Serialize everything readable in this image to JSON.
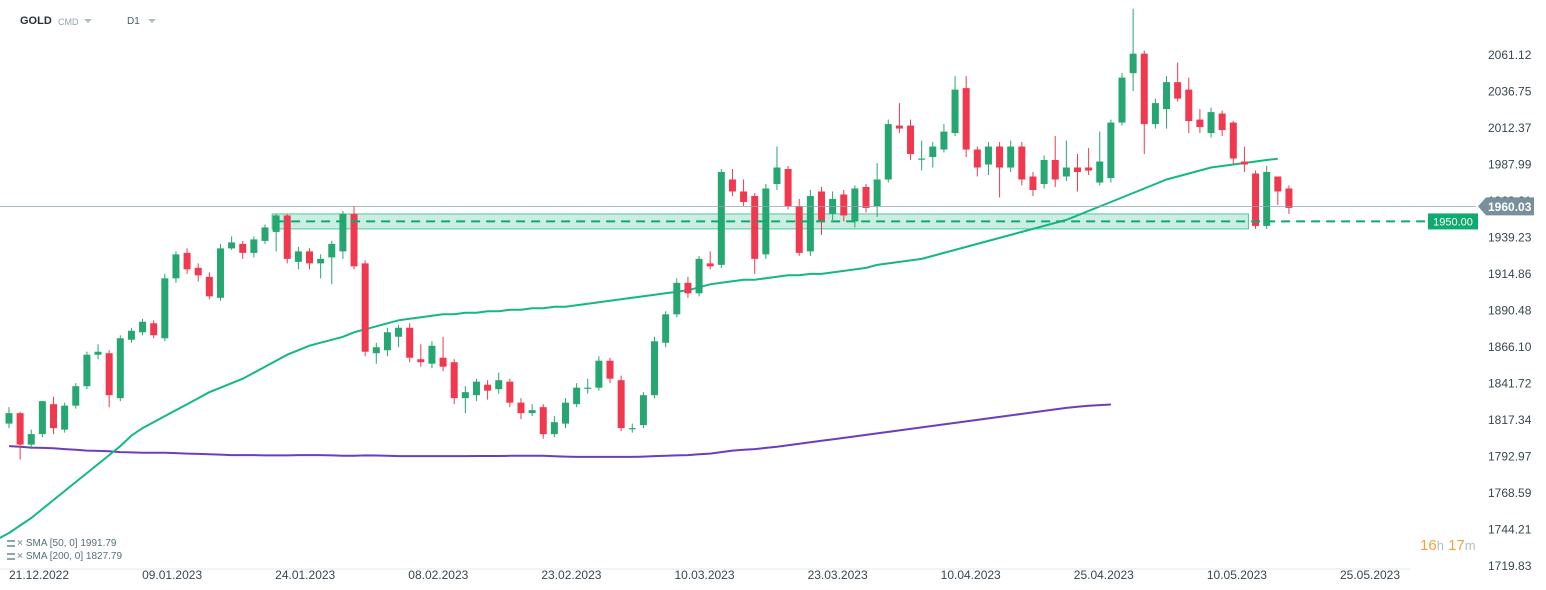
{
  "header": {
    "symbol": "GOLD",
    "instrument_type": "CMD",
    "timeframe": "D1"
  },
  "indicators": [
    {
      "label": "SMA  [50,  0]  1991.79",
      "color": "#13b883"
    },
    {
      "label": "SMA  [200,  0]  1827.79",
      "color": "#6c3fb8"
    }
  ],
  "timer": {
    "hours": "16",
    "h_unit": "h",
    "minutes": "17",
    "m_unit": "m"
  },
  "colors": {
    "up": "#26a671",
    "down": "#f0394f",
    "sma50": "#13b883",
    "sma200": "#6c3fb8",
    "zone": "#4fc79a",
    "price_tag": "#78909c",
    "level_tag": "#0faa6f"
  },
  "chart_data": {
    "type": "candlestick",
    "y_ticks": [
      2061.12,
      2036.75,
      2012.37,
      1987.99,
      1963.61,
      1939.23,
      1914.86,
      1890.48,
      1866.1,
      1841.72,
      1817.34,
      1792.97,
      1768.59,
      1744.21,
      1719.83
    ],
    "y_tick_labels": [
      "2061.12",
      "2036.75",
      "2012.37",
      "1987.99",
      "1963.61",
      "1939.23",
      "1914.86",
      "1890.48",
      "1866.10",
      "1841.72",
      "1817.34",
      "1792.97",
      "1768.59",
      "1744.21",
      "1719.83"
    ],
    "x_tick_labels": [
      "21.12.2022",
      "09.01.2023",
      "24.01.2023",
      "08.02.2023",
      "23.02.2023",
      "10.03.2023",
      "23.03.2023",
      "10.04.2023",
      "25.04.2023",
      "10.05.2023",
      "25.05.2023"
    ],
    "last_price": {
      "value": 1960.03,
      "label": "1960.03"
    },
    "level": {
      "value": 1950.0,
      "label": "1950.00"
    },
    "zone": {
      "low": 1945,
      "high": 1955,
      "from_index": 24,
      "to_index": 111
    },
    "candles": [
      [
        1815,
        1822,
        1826,
        1812
      ],
      [
        1822,
        1801,
        1823,
        1791
      ],
      [
        1801,
        1808,
        1811,
        1798
      ],
      [
        1808,
        1830,
        1830,
        1806
      ],
      [
        1828,
        1812,
        1833,
        1808
      ],
      [
        1811,
        1827,
        1829,
        1809
      ],
      [
        1827,
        1840,
        1842,
        1825
      ],
      [
        1840,
        1861,
        1863,
        1838
      ],
      [
        1861,
        1863,
        1868,
        1858
      ],
      [
        1862,
        1834,
        1864,
        1826
      ],
      [
        1832,
        1872,
        1874,
        1830
      ],
      [
        1871,
        1877,
        1879,
        1869
      ],
      [
        1876,
        1883,
        1885,
        1874
      ],
      [
        1882,
        1874,
        1884,
        1872
      ],
      [
        1872,
        1912,
        1915,
        1870
      ],
      [
        1912,
        1928,
        1930,
        1909
      ],
      [
        1929,
        1918,
        1932,
        1915
      ],
      [
        1919,
        1914,
        1922,
        1910
      ],
      [
        1913,
        1900,
        1916,
        1898
      ],
      [
        1899,
        1932,
        1935,
        1897
      ],
      [
        1932,
        1936,
        1940,
        1931
      ],
      [
        1935,
        1929,
        1937,
        1925
      ],
      [
        1929,
        1938,
        1940,
        1926
      ],
      [
        1937,
        1946,
        1948,
        1935
      ],
      [
        1943,
        1954,
        1955,
        1930
      ],
      [
        1954,
        1925,
        1955,
        1922
      ],
      [
        1923,
        1930,
        1933,
        1918
      ],
      [
        1930,
        1922,
        1932,
        1918
      ],
      [
        1922,
        1925,
        1928,
        1912
      ],
      [
        1926,
        1935,
        1937,
        1908
      ],
      [
        1930,
        1955,
        1957,
        1925
      ],
      [
        1955,
        1920,
        1960,
        1918
      ],
      [
        1922,
        1863,
        1924,
        1860
      ],
      [
        1862,
        1866,
        1869,
        1855
      ],
      [
        1864,
        1876,
        1879,
        1860
      ],
      [
        1873,
        1879,
        1881,
        1866
      ],
      [
        1879,
        1859,
        1882,
        1856
      ],
      [
        1858,
        1856,
        1868,
        1853
      ],
      [
        1855,
        1867,
        1870,
        1852
      ],
      [
        1859,
        1853,
        1873,
        1850
      ],
      [
        1856,
        1832,
        1858,
        1828
      ],
      [
        1832,
        1836,
        1840,
        1822
      ],
      [
        1834,
        1843,
        1845,
        1830
      ],
      [
        1841,
        1837,
        1844,
        1831
      ],
      [
        1838,
        1844,
        1849,
        1835
      ],
      [
        1843,
        1829,
        1845,
        1826
      ],
      [
        1829,
        1822,
        1832,
        1818
      ],
      [
        1822,
        1824,
        1828,
        1820
      ],
      [
        1826,
        1808,
        1828,
        1805
      ],
      [
        1808,
        1816,
        1820,
        1806
      ],
      [
        1815,
        1829,
        1832,
        1812
      ],
      [
        1828,
        1839,
        1842,
        1826
      ],
      [
        1839,
        1839,
        1845,
        1835
      ],
      [
        1839,
        1857,
        1860,
        1837
      ],
      [
        1857,
        1845,
        1859,
        1842
      ],
      [
        1844,
        1812,
        1847,
        1810
      ],
      [
        1812,
        1812,
        1815,
        1809
      ],
      [
        1814,
        1834,
        1836,
        1812
      ],
      [
        1834,
        1870,
        1873,
        1832
      ],
      [
        1869,
        1888,
        1890,
        1866
      ],
      [
        1888,
        1909,
        1912,
        1886
      ],
      [
        1909,
        1902,
        1913,
        1899
      ],
      [
        1902,
        1925,
        1927,
        1900
      ],
      [
        1922,
        1920,
        1930,
        1918
      ],
      [
        1921,
        1983,
        1985,
        1919
      ],
      [
        1978,
        1970,
        1985,
        1967
      ],
      [
        1970,
        1963,
        1978,
        1960
      ],
      [
        1967,
        1925,
        1969,
        1915
      ],
      [
        1928,
        1972,
        1975,
        1925
      ],
      [
        1975,
        1986,
        2000,
        1971
      ],
      [
        1985,
        1960,
        1987,
        1958
      ],
      [
        1960,
        1929,
        1965,
        1927
      ],
      [
        1930,
        1967,
        1971,
        1927
      ],
      [
        1970,
        1950,
        1973,
        1941
      ],
      [
        1955,
        1965,
        1970,
        1951
      ],
      [
        1968,
        1954,
        1971,
        1950
      ],
      [
        1950,
        1972,
        1974,
        1946
      ],
      [
        1973,
        1959,
        1975,
        1956
      ],
      [
        1960,
        1978,
        1989,
        1953
      ],
      [
        1978,
        2015,
        2018,
        1976
      ],
      [
        2014,
        2012,
        2029,
        2009
      ],
      [
        2014,
        1995,
        2018,
        1991
      ],
      [
        1992,
        1992,
        2004,
        1984
      ],
      [
        1993,
        2000,
        2003,
        1986
      ],
      [
        1998,
        2010,
        2015,
        1996
      ],
      [
        2009,
        2038,
        2047,
        2007
      ],
      [
        2039,
        1998,
        2047,
        1993
      ],
      [
        1998,
        1986,
        2000,
        1980
      ],
      [
        1988,
        2000,
        2003,
        1981
      ],
      [
        2000,
        1986,
        2003,
        1966
      ],
      [
        1986,
        2000,
        2004,
        1983
      ],
      [
        2000,
        1978,
        2003,
        1974
      ],
      [
        1980,
        1971,
        1983,
        1967
      ],
      [
        1975,
        1991,
        1994,
        1972
      ],
      [
        1991,
        1978,
        2007,
        1973
      ],
      [
        1980,
        1986,
        2004,
        1977
      ],
      [
        1986,
        1983,
        1995,
        1970
      ],
      [
        1986,
        1984,
        1999,
        1981
      ],
      [
        1976,
        1990,
        2010,
        1974
      ],
      [
        1979,
        2016,
        2018,
        1976
      ],
      [
        2016,
        2046,
        2049,
        2014
      ],
      [
        2049,
        2062,
        2092,
        2037
      ],
      [
        2062,
        2015,
        2064,
        1995
      ],
      [
        2015,
        2029,
        2032,
        2012
      ],
      [
        2025,
        2043,
        2047,
        2012
      ],
      [
        2043,
        2032,
        2056,
        2030
      ],
      [
        2038,
        2017,
        2046,
        2009
      ],
      [
        2018,
        2013,
        2025,
        2009
      ],
      [
        2009,
        2023,
        2026,
        2006
      ],
      [
        2022,
        2011,
        2024,
        2007
      ],
      [
        2016,
        1992,
        2017,
        1988
      ],
      [
        1990,
        1988,
        2000,
        1983
      ],
      [
        1982,
        1947,
        1984,
        1945
      ],
      [
        1947,
        1983,
        1987,
        1945
      ],
      [
        1980,
        1970,
        1980,
        1961
      ],
      [
        1972,
        1959,
        1974,
        1955
      ]
    ],
    "sma50": [
      1723,
      1728,
      1733,
      1738,
      1742,
      1747,
      1752,
      1758,
      1764,
      1770,
      1776,
      1782,
      1788,
      1794,
      1800,
      1807,
      1812,
      1816,
      1820,
      1824,
      1828,
      1832,
      1836,
      1839,
      1842,
      1845,
      1849,
      1853,
      1857,
      1861,
      1864,
      1867,
      1869,
      1871,
      1873,
      1876,
      1878,
      1880,
      1882,
      1884,
      1885,
      1886,
      1887,
      1888,
      1888,
      1889,
      1889,
      1890,
      1890,
      1891,
      1891,
      1892,
      1892,
      1893,
      1893,
      1894,
      1895,
      1896,
      1897,
      1898,
      1899,
      1900,
      1901,
      1902,
      1903,
      1904,
      1906,
      1908,
      1909,
      1910,
      1911,
      1911,
      1912,
      1913,
      1914,
      1914,
      1915,
      1915,
      1916,
      1917,
      1918,
      1919,
      1921,
      1922,
      1923,
      1924,
      1925,
      1927,
      1929,
      1931,
      1933,
      1935,
      1937,
      1939,
      1941,
      1943,
      1945,
      1947,
      1949,
      1951,
      1954,
      1957,
      1960,
      1963,
      1966,
      1969,
      1972,
      1975,
      1978,
      1980,
      1982,
      1984,
      1986,
      1987,
      1988,
      1989,
      1990,
      1991,
      1991.79
    ],
    "sma50_x0": -4,
    "sma200": [
      1800,
      1799.5,
      1799,
      1798.8,
      1798.5,
      1798,
      1797.5,
      1797,
      1796.8,
      1796.5,
      1796,
      1795.8,
      1795.5,
      1795.5,
      1795.5,
      1795.3,
      1795,
      1794.8,
      1794.5,
      1794.3,
      1794,
      1794,
      1794,
      1793.8,
      1793.8,
      1793.8,
      1794,
      1794,
      1794,
      1793.8,
      1793.5,
      1793.5,
      1793.8,
      1793.7,
      1793.5,
      1793.3,
      1793.3,
      1793.3,
      1793.3,
      1793.3,
      1793.3,
      1793.3,
      1793.4,
      1793.4,
      1793.4,
      1793.5,
      1793.5,
      1793.5,
      1793.5,
      1793.2,
      1793,
      1792.8,
      1792.8,
      1792.8,
      1792.8,
      1792.8,
      1792.8,
      1793,
      1793.3,
      1793.5,
      1793.8,
      1794,
      1794.5,
      1795,
      1796,
      1797,
      1797.5,
      1798,
      1798.8,
      1799.5,
      1800.5,
      1801.5,
      1802.5,
      1803.5,
      1804.5,
      1805.5,
      1806.5,
      1807.5,
      1808.5,
      1809.5,
      1810.5,
      1811.5,
      1812.5,
      1813.5,
      1814.5,
      1815.5,
      1816.5,
      1817.5,
      1818.5,
      1819.5,
      1820.5,
      1821.5,
      1822.5,
      1823.5,
      1824.5,
      1825.5,
      1826.3,
      1827,
      1827.4,
      1827.79
    ],
    "sma200_x0": 0
  }
}
